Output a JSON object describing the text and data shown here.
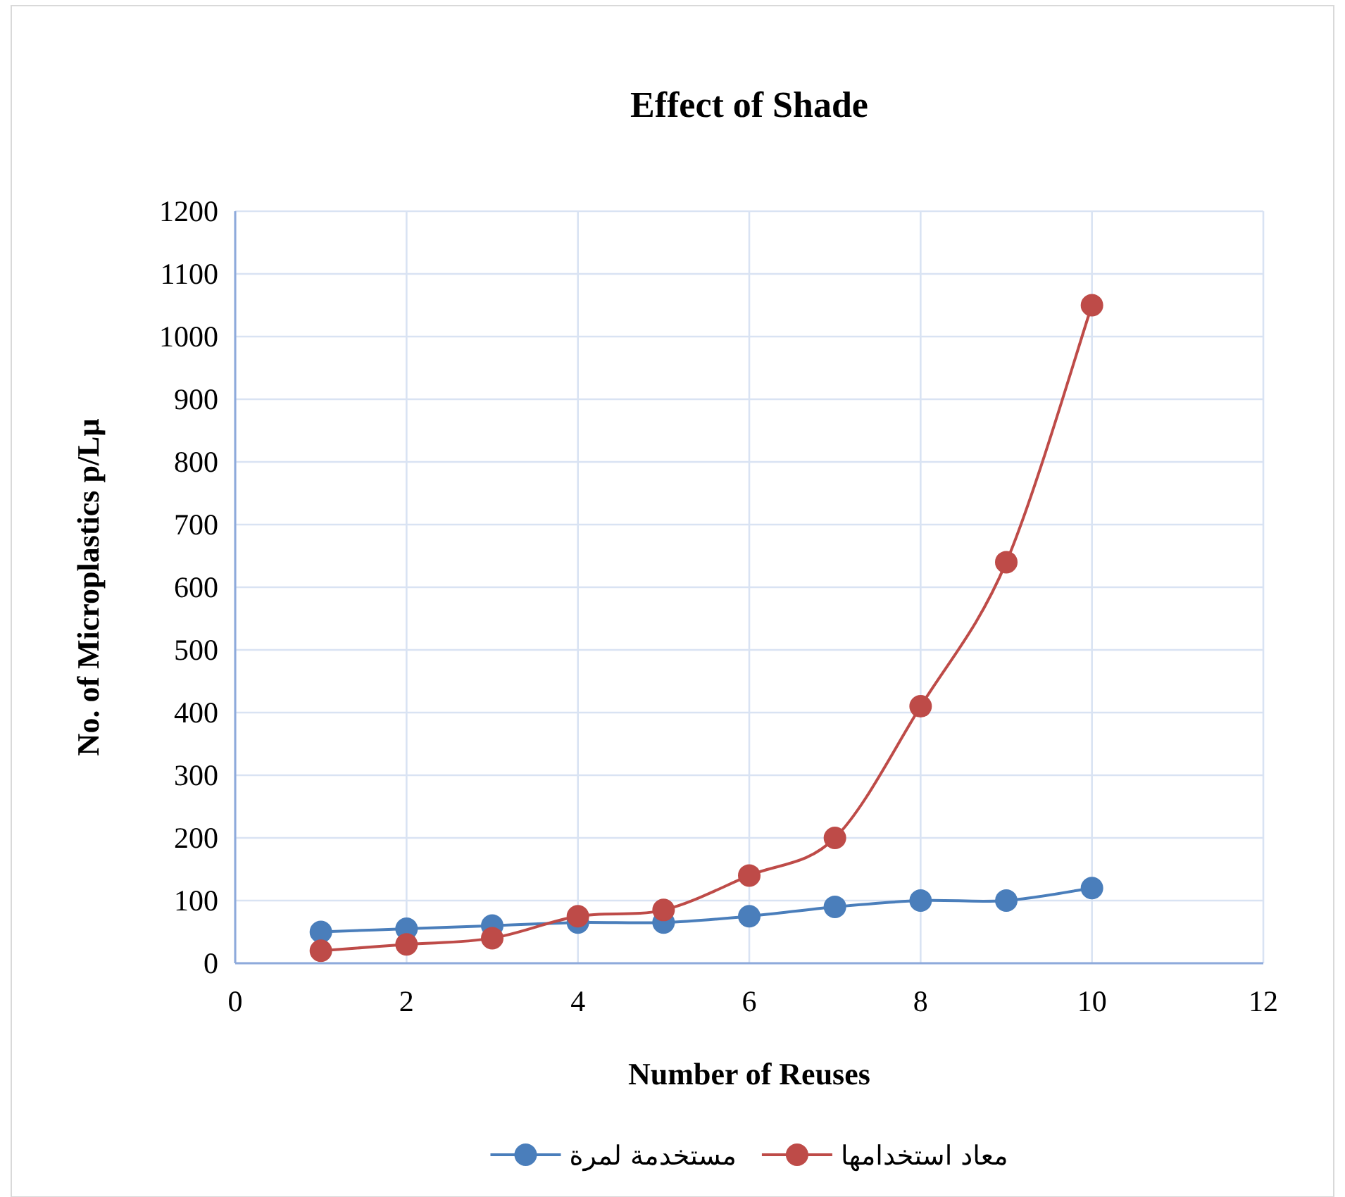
{
  "chart_data": {
    "type": "line",
    "title": "Effect of Shade",
    "xlabel": "Number of Reuses",
    "ylabel": "No. of Microplastics p/Lμ",
    "x": [
      1,
      2,
      3,
      4,
      5,
      6,
      7,
      8,
      9,
      10
    ],
    "series": [
      {
        "name": "مستخدمة لمرة",
        "color": "#4a7ebb",
        "values": [
          50,
          55,
          60,
          65,
          65,
          75,
          90,
          100,
          100,
          120
        ]
      },
      {
        "name": "معاد استخدامها",
        "color": "#be4b48",
        "values": [
          20,
          30,
          40,
          75,
          85,
          140,
          200,
          410,
          640,
          1050
        ]
      }
    ],
    "xlim": [
      0,
      12
    ],
    "xticks": [
      0,
      2,
      4,
      6,
      8,
      10,
      12
    ],
    "ylim": [
      0,
      1200
    ],
    "yticks": [
      0,
      100,
      200,
      300,
      400,
      500,
      600,
      700,
      800,
      900,
      1000,
      1100,
      1200
    ],
    "grid": true,
    "legend": "bottom",
    "marker": "circle"
  }
}
